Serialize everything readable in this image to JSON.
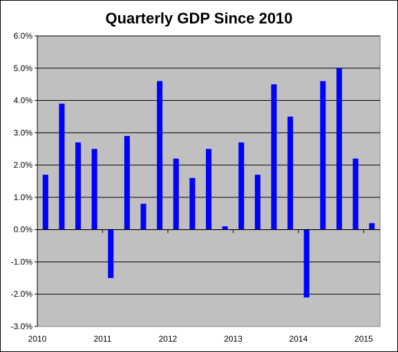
{
  "chart_data": {
    "type": "bar",
    "title": "Quarterly GDP Since 2010",
    "xlabel": "",
    "ylabel": "",
    "ylim": [
      -3.0,
      6.0
    ],
    "yticks": [
      "-3.0%",
      "-2.0%",
      "-1.0%",
      "0.0%",
      "1.0%",
      "2.0%",
      "3.0%",
      "4.0%",
      "5.0%",
      "6.0%"
    ],
    "xticks": [
      "2010",
      "2011",
      "2012",
      "2013",
      "2014",
      "2015"
    ],
    "grid": true,
    "colors": {
      "bar": "#0000ff",
      "plot_bg": "#c0c0c0",
      "grid": "#000000"
    },
    "values": [
      1.7,
      3.9,
      2.7,
      2.5,
      -1.5,
      2.9,
      0.8,
      4.6,
      2.2,
      1.6,
      2.5,
      0.1,
      2.7,
      1.7,
      4.5,
      3.5,
      -2.1,
      4.6,
      5.0,
      2.2,
      0.2
    ]
  }
}
